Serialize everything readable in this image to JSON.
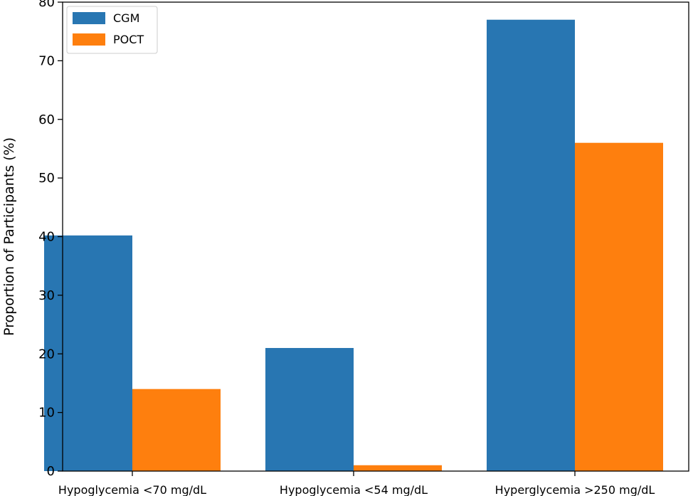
{
  "chart_data": {
    "type": "bar",
    "title": "",
    "xlabel": "",
    "ylabel": "Proportion of Participants (%)",
    "categories": [
      "Hypoglycemia <70 mg/dL",
      "Hypoglycemia <54 mg/dL",
      "Hyperglycemia >250 mg/dL"
    ],
    "series": [
      {
        "name": "CGM",
        "color": "#2876b2",
        "values": [
          40.2,
          21.0,
          77.0
        ]
      },
      {
        "name": "POCT",
        "color": "#fe7f0e",
        "values": [
          14.0,
          1.0,
          56.0
        ]
      }
    ],
    "ylim": [
      0,
      80
    ],
    "yticks": [
      0,
      10,
      20,
      30,
      40,
      50,
      60,
      70,
      80
    ],
    "grid": false,
    "legend_position": "top-left"
  }
}
